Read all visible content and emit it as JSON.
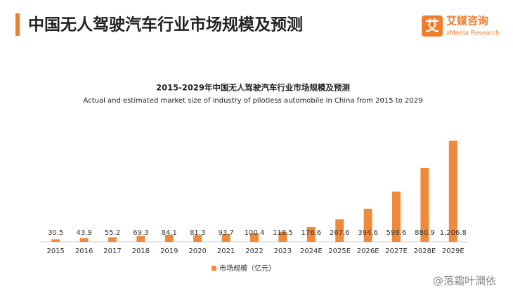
{
  "header": {
    "title": "中国无人驾驶汽车行业市场规模及预测",
    "logo_icon": "艾",
    "logo_name": "艾媒咨询",
    "logo_sub": "iiMedia Research"
  },
  "chart_data": {
    "type": "bar",
    "title": "2015-2029年中国无人驾驶汽车行业市场规模及预测",
    "subtitle": "Actual and estimated market size of industry of pilotless automobile in China from 2015 to 2029",
    "categories": [
      "2015",
      "2016",
      "2017",
      "2018",
      "2019",
      "2020",
      "2021",
      "2022",
      "2023",
      "2024E",
      "2025E",
      "2026E",
      "2027E",
      "2028E",
      "2029E"
    ],
    "series": [
      {
        "name": "市场规模（亿元）",
        "color": "#ef8a3c",
        "values": [
          30.5,
          43.9,
          55.2,
          69.3,
          84.1,
          81.3,
          93.7,
          100.4,
          118.5,
          176.6,
          267.6,
          394.6,
          598.6,
          880.9,
          1206.8
        ],
        "value_labels": [
          "30.5",
          "43.9",
          "55.2",
          "69.3",
          "84.1",
          "81.3",
          "93.7",
          "100.4",
          "118.5",
          "176.6",
          "267.6",
          "394.6",
          "598.6",
          "880.9",
          "1,206.8"
        ]
      }
    ],
    "legend": "bottom"
  },
  "watermark": "@落霜叶澗依"
}
